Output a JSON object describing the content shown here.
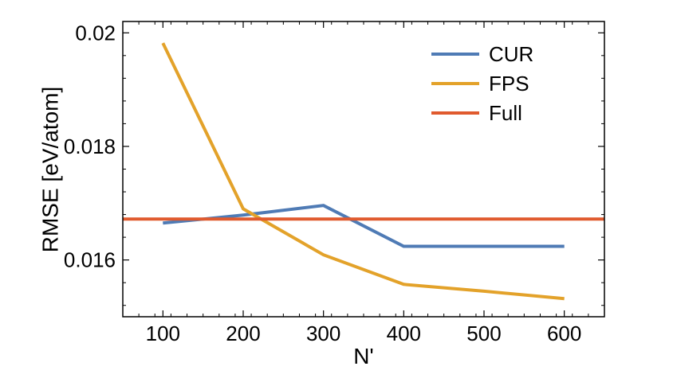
{
  "chart_data": {
    "type": "line",
    "xlabel": "N'",
    "ylabel": "RMSE [eV/atom]",
    "xlim": [
      50,
      650
    ],
    "ylim": [
      0.015,
      0.0202
    ],
    "x_ticks": [
      100,
      200,
      300,
      400,
      500,
      600
    ],
    "x_tick_labels": [
      "100",
      "200",
      "300",
      "400",
      "500",
      "600"
    ],
    "y_ticks": [
      0.016,
      0.018,
      0.02
    ],
    "y_tick_labels": [
      "0.016",
      "0.018",
      "0.02"
    ],
    "grid": false,
    "legend_position": "top-right",
    "series": [
      {
        "name": "CUR",
        "color": "#4f7bb5",
        "x": [
          100,
          200,
          300,
          400,
          500,
          600
        ],
        "y": [
          0.01665,
          0.01679,
          0.01696,
          0.01624,
          0.01624,
          0.01624
        ]
      },
      {
        "name": "FPS",
        "color": "#e3a22a",
        "x": [
          100,
          200,
          300,
          400,
          500,
          600
        ],
        "y": [
          0.01982,
          0.0169,
          0.01609,
          0.01557,
          0.01545,
          0.01532
        ]
      },
      {
        "name": "Full",
        "color": "#e05a2e",
        "x": [
          50,
          650
        ],
        "y": [
          0.01672,
          0.01672
        ]
      }
    ]
  }
}
